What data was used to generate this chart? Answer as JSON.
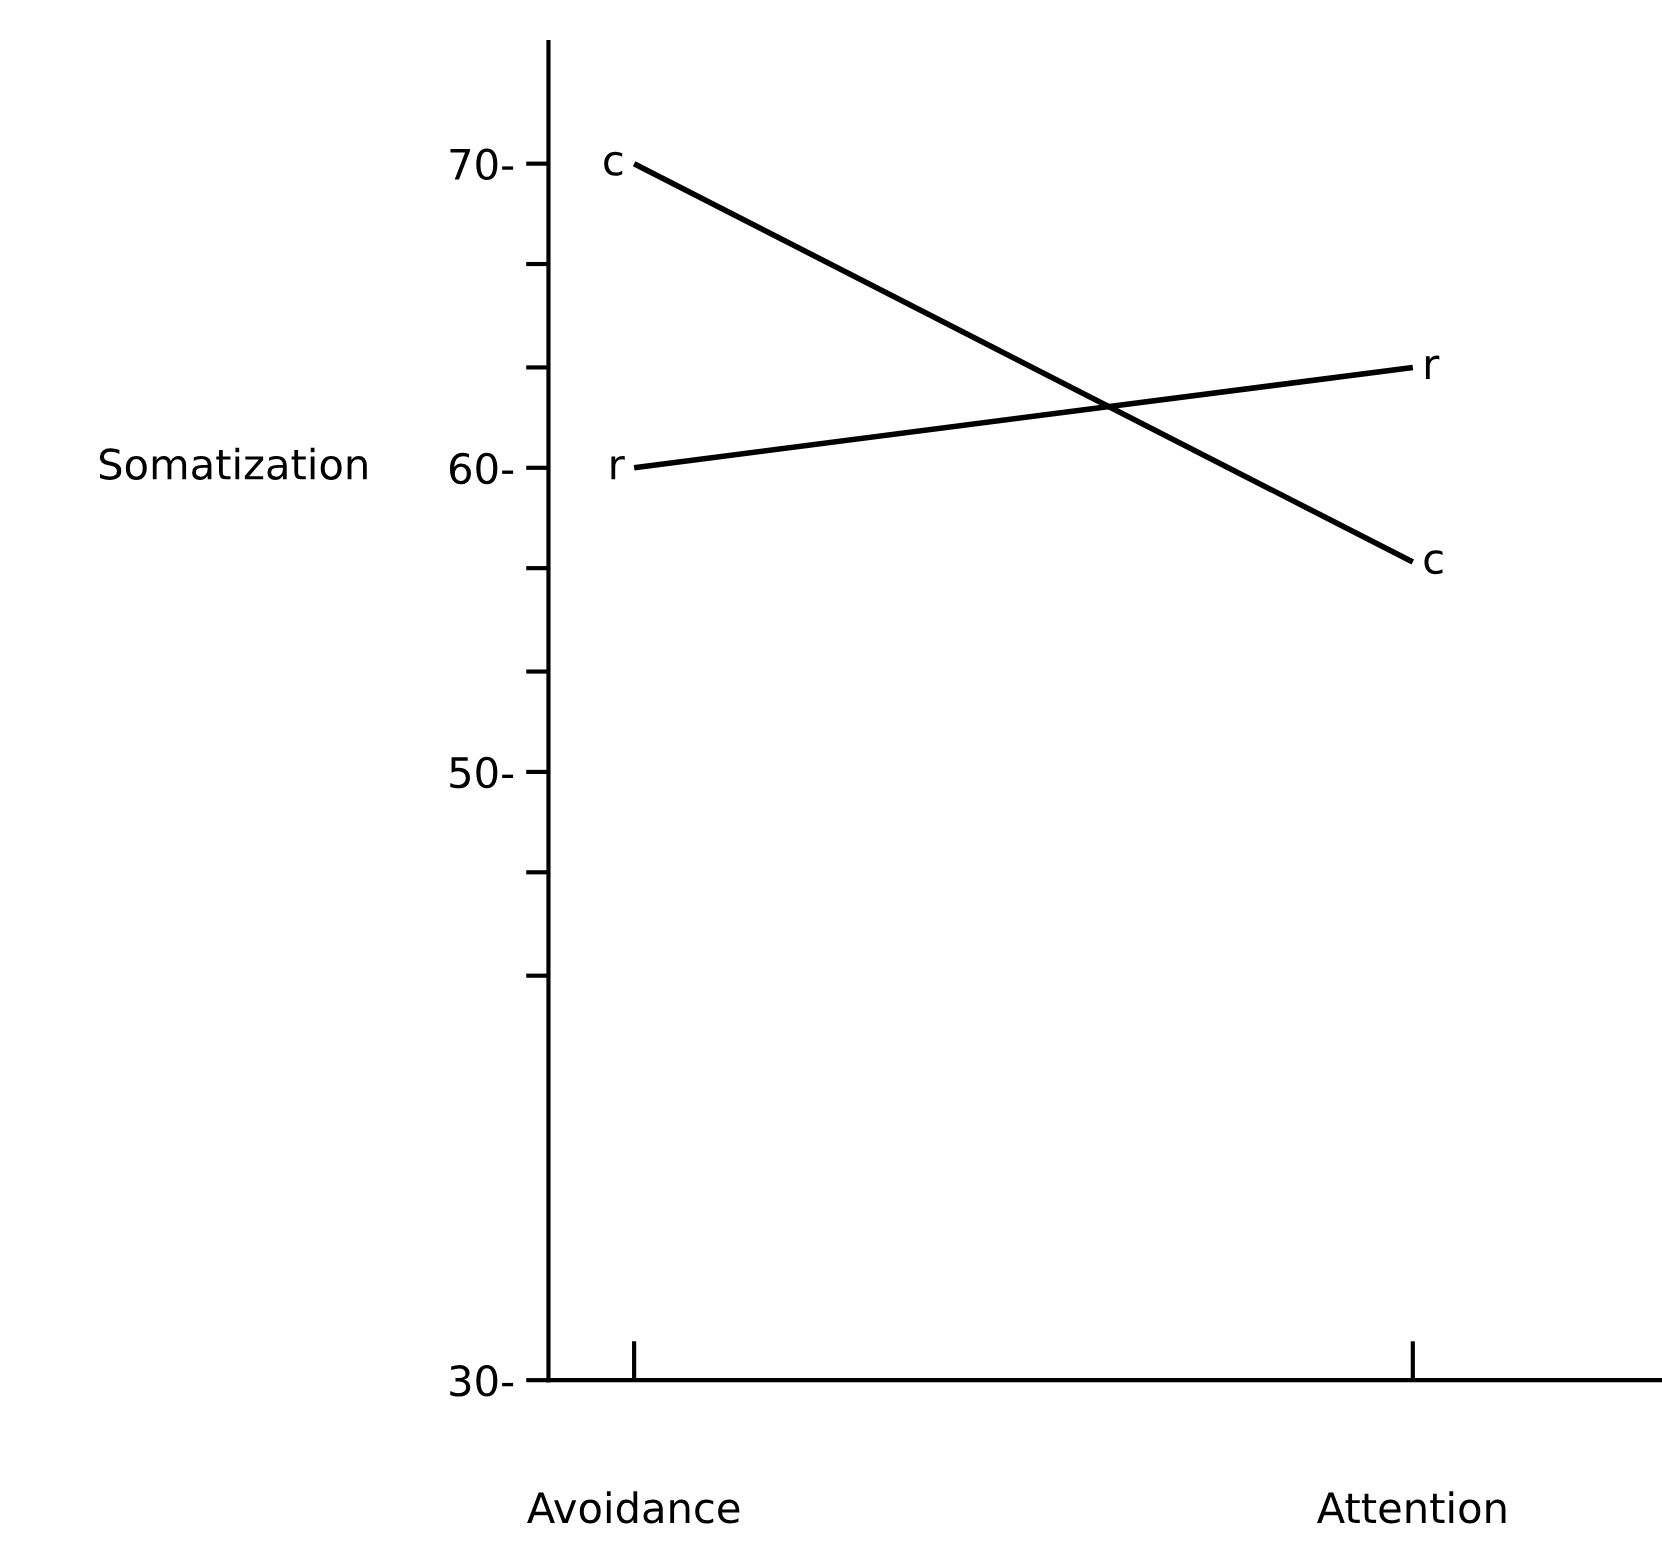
{
  "chart_data": {
    "type": "line",
    "ylabel": "Somatization",
    "categories": [
      "Avoidance",
      "Attention"
    ],
    "series": [
      {
        "name": "c",
        "color": "#000000",
        "values": [
          70,
          56.9
        ]
      },
      {
        "name": "r",
        "color": "#000000",
        "values": [
          60,
          63.3
        ]
      }
    ],
    "ylim": [
      30,
      74
    ],
    "yticks": [
      {
        "value": 30,
        "label": "30-"
      },
      {
        "value": 43.3,
        "label": null
      },
      {
        "value": 46.7,
        "label": null
      },
      {
        "value": 50,
        "label": "50-"
      },
      {
        "value": 53.3,
        "label": null
      },
      {
        "value": 56.7,
        "label": null
      },
      {
        "value": 60,
        "label": "60-"
      },
      {
        "value": 63.3,
        "label": null
      },
      {
        "value": 66.7,
        "label": null
      },
      {
        "value": 70,
        "label": "70-"
      }
    ],
    "marker": "none",
    "line_style": "solid",
    "grid": false,
    "legend": false
  }
}
